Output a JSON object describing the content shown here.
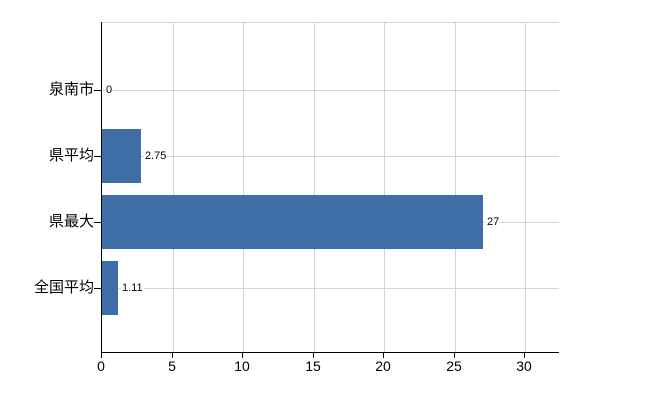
{
  "chart_data": {
    "type": "bar",
    "orientation": "horizontal",
    "title": "",
    "xlabel": "",
    "ylabel": "",
    "categories": [
      "泉南市",
      "県平均",
      "県最大",
      "全国平均"
    ],
    "values": [
      0,
      2.75,
      27,
      1.11
    ],
    "value_labels": [
      "0",
      "2.75",
      "27",
      "1.11"
    ],
    "x_ticks": [
      0,
      5,
      10,
      15,
      20,
      25,
      30
    ],
    "x_tick_labels": [
      "0",
      "5",
      "10",
      "15",
      "20",
      "25",
      "30"
    ],
    "xlim": [
      0,
      32.4
    ],
    "grid": true,
    "legend": false,
    "colors": {
      "bar": "#3F6DA6",
      "gridline": "#D2D5D0",
      "axis": "#000000",
      "text": "#000000",
      "background": "#FFFFFF"
    }
  }
}
